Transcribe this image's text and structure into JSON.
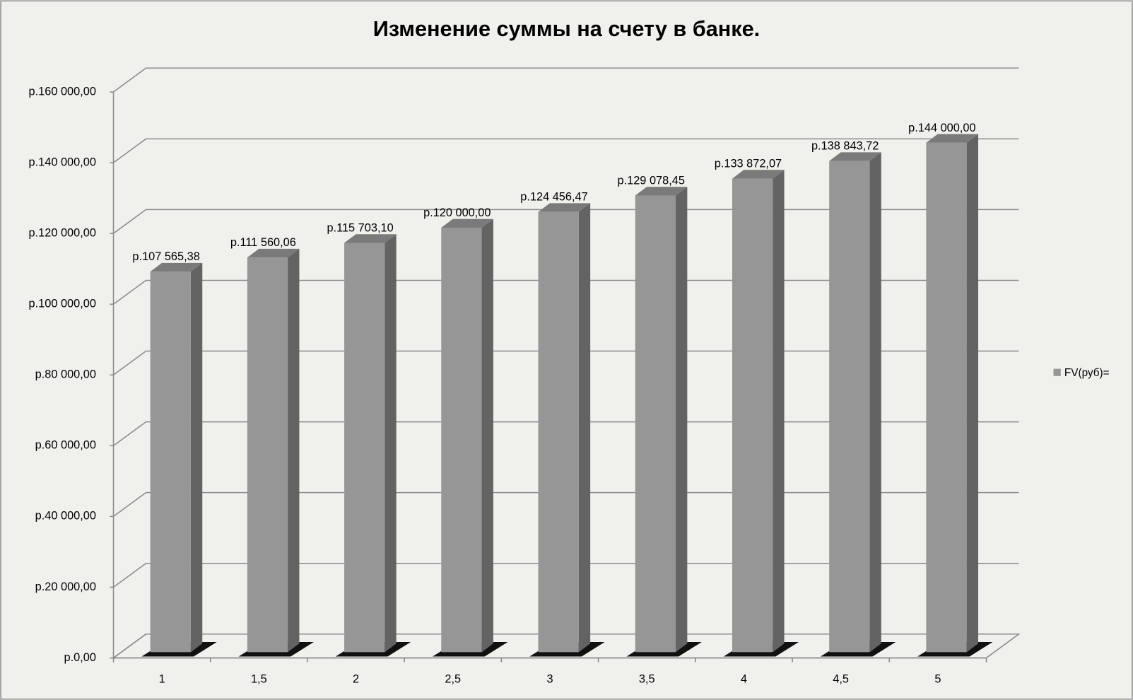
{
  "chart_data": {
    "type": "bar3d",
    "title": "Изменение суммы на счету в банке.",
    "categories": [
      "1",
      "1,5",
      "2",
      "2,5",
      "3",
      "3,5",
      "4",
      "4,5",
      "5"
    ],
    "series": [
      {
        "name": "FV(руб)=",
        "color": "#969696",
        "values": [
          107565.38,
          111560.06,
          115703.1,
          120000.0,
          124456.47,
          129078.45,
          133872.07,
          138843.72,
          144000.0
        ],
        "value_labels": [
          "р.107 565,38",
          "р.111 560,06",
          "р.115 703,10",
          "р.120 000,00",
          "р.124 456,47",
          "р.129 078,45",
          "р.133 872,07",
          "р.138 843,72",
          "р.144 000,00"
        ]
      }
    ],
    "ylim": [
      0,
      160000
    ],
    "yticks": [
      {
        "value": 0,
        "label": "р.0,00"
      },
      {
        "value": 20000,
        "label": "р.20 000,00"
      },
      {
        "value": 40000,
        "label": "р.40 000,00"
      },
      {
        "value": 60000,
        "label": "р.60 000,00"
      },
      {
        "value": 80000,
        "label": "р.80 000,00"
      },
      {
        "value": 100000,
        "label": "р.100 000,00"
      },
      {
        "value": 120000,
        "label": "р.120 000,00"
      },
      {
        "value": 140000,
        "label": "р.140 000,00"
      },
      {
        "value": 160000,
        "label": "р.160 000,00"
      }
    ],
    "grid": true,
    "legend": "right"
  }
}
